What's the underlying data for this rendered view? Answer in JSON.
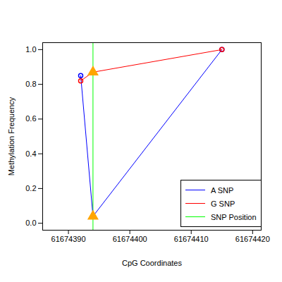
{
  "chart_data": {
    "type": "line",
    "x_label": "CpG Coordinates",
    "y_label": "Methylation Frequency",
    "xlim": [
      61674385.8,
      61674421.4
    ],
    "xticks": [
      61674390,
      61674400,
      61674410,
      61674420
    ],
    "ylim": [
      -0.04,
      1.04
    ],
    "yticks": [
      {
        "value": 0,
        "label": "0.0"
      },
      {
        "value": 0.2,
        "label": "0.2"
      },
      {
        "value": 0.4,
        "label": "0.4"
      },
      {
        "value": 0.6,
        "label": "0.6"
      },
      {
        "value": 0.8,
        "label": "0.8"
      },
      {
        "value": 1,
        "label": "1.0"
      }
    ],
    "legend": "right",
    "series": [
      {
        "name": "A SNP",
        "color": "#0000ff",
        "marker": "circle",
        "x": [
          61674392,
          61674394,
          61674415
        ],
        "values": [
          0.85,
          0.04,
          1.0
        ]
      },
      {
        "name": "G SNP",
        "color": "#ff0000",
        "marker": "circle",
        "x": [
          61674392,
          61674394,
          61674415
        ],
        "values": [
          0.82,
          0.87,
          1.0
        ]
      },
      {
        "name": "SNP Position",
        "color": "#00ff00",
        "type": "rule",
        "x": [
          61674394
        ]
      }
    ]
  }
}
